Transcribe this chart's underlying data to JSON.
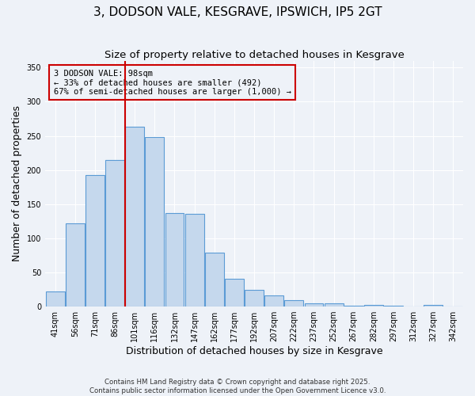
{
  "title": "3, DODSON VALE, KESGRAVE, IPSWICH, IP5 2GT",
  "subtitle": "Size of property relative to detached houses in Kesgrave",
  "xlabel": "Distribution of detached houses by size in Kesgrave",
  "ylabel": "Number of detached properties",
  "bar_labels": [
    "41sqm",
    "56sqm",
    "71sqm",
    "86sqm",
    "101sqm",
    "116sqm",
    "132sqm",
    "147sqm",
    "162sqm",
    "177sqm",
    "192sqm",
    "207sqm",
    "222sqm",
    "237sqm",
    "252sqm",
    "267sqm",
    "282sqm",
    "297sqm",
    "312sqm",
    "327sqm",
    "342sqm"
  ],
  "bar_values": [
    22,
    122,
    193,
    215,
    263,
    248,
    137,
    136,
    79,
    41,
    24,
    16,
    9,
    5,
    5,
    1,
    2,
    1,
    0,
    2,
    0
  ],
  "bar_color": "#c5d8ed",
  "bar_edge_color": "#5b9bd5",
  "vline_color": "#cc0000",
  "annotation_text": "3 DODSON VALE: 98sqm\n← 33% of detached houses are smaller (492)\n67% of semi-detached houses are larger (1,000) →",
  "annotation_box_color": "#cc0000",
  "annotation_text_color": "#000000",
  "ylim": [
    0,
    360
  ],
  "yticks": [
    0,
    50,
    100,
    150,
    200,
    250,
    300,
    350
  ],
  "background_color": "#eef2f8",
  "grid_color": "#ffffff",
  "title_fontsize": 11,
  "subtitle_fontsize": 9.5,
  "axis_label_fontsize": 9,
  "tick_fontsize": 7,
  "annotation_fontsize": 7.5,
  "footer_text": "Contains HM Land Registry data © Crown copyright and database right 2025.\nContains public sector information licensed under the Open Government Licence v3.0."
}
